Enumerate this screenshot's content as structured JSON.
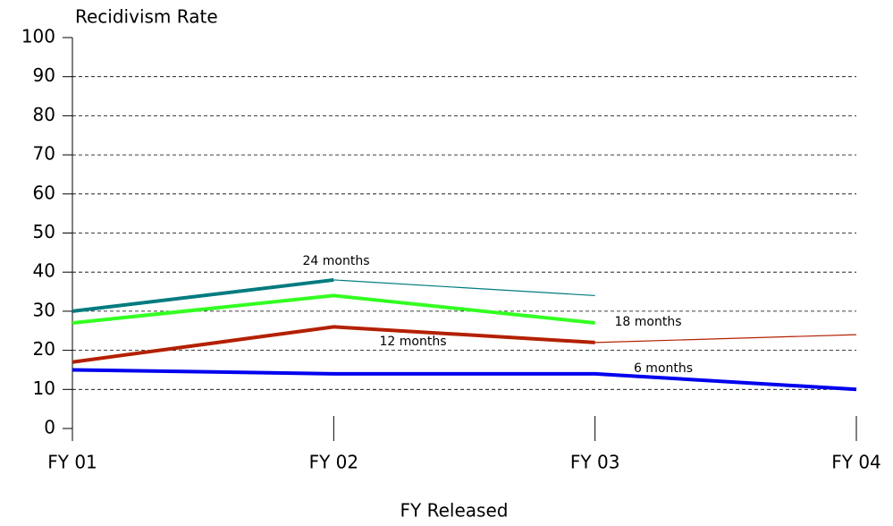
{
  "chart_data": {
    "type": "line",
    "title": "Recidivism Rate",
    "x_label": "FY Released",
    "categories": [
      "FY 01",
      "FY 02",
      "FY 03",
      "FY 04"
    ],
    "series": [
      {
        "name": "24 months",
        "color": "#007b7f",
        "values": [
          30,
          38,
          null,
          null
        ],
        "projected": [
          null,
          38,
          34,
          null
        ]
      },
      {
        "name": "18 months",
        "color": "#33ff22",
        "values": [
          27,
          34,
          27,
          null
        ]
      },
      {
        "name": "12 months",
        "color": "#b32000",
        "values": [
          17,
          26,
          22,
          null
        ],
        "projected": [
          null,
          null,
          22,
          24
        ]
      },
      {
        "name": "6 months",
        "color": "#0000ee",
        "values": [
          15,
          14,
          14,
          10
        ]
      }
    ],
    "ylim": [
      0,
      100
    ],
    "yticks": [
      0,
      10,
      20,
      30,
      40,
      50,
      60,
      70,
      80,
      90,
      100
    ],
    "grid": true
  }
}
